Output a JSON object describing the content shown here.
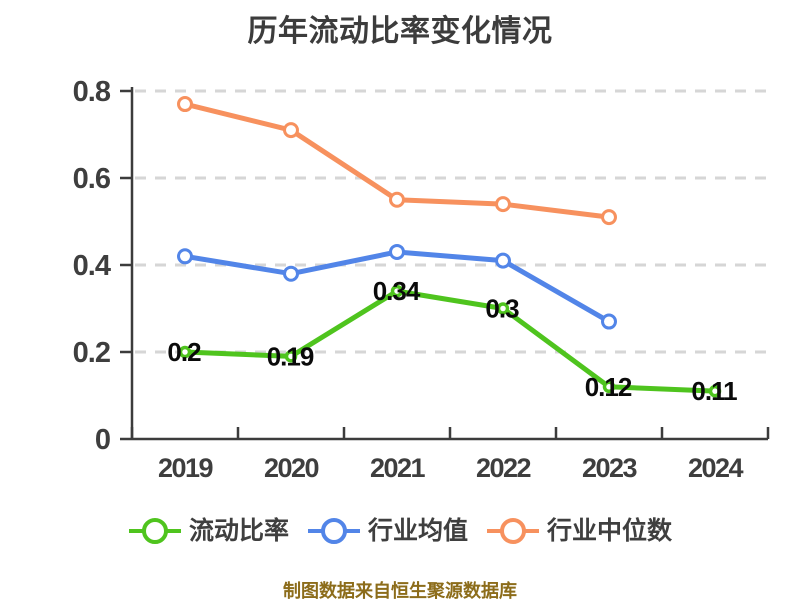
{
  "title": "历年流动比率变化情况",
  "footer_note": "制图数据来自恒生聚源数据库",
  "colors": {
    "title": "#3c3c3c",
    "axis": "#3c3c3c",
    "grid": "#d6d6d6",
    "tick_label": "#3e3e3e",
    "point_label": "#0a0a0a",
    "legend_label": "#3f3f3f",
    "marker_fill": "#ffffff",
    "footer": "#8c6c1a",
    "series_green": "#4fc41e",
    "series_blue": "#5285e8",
    "series_orange": "#f7915e"
  },
  "chart_data": {
    "type": "line",
    "title": "历年流动比率变化情况",
    "categories": [
      "2019",
      "2020",
      "2021",
      "2022",
      "2023",
      "2024"
    ],
    "series": [
      {
        "key": "current-ratio",
        "name": "流动比率",
        "color": "#4fc41e",
        "values": [
          0.2,
          0.19,
          0.34,
          0.3,
          0.12,
          0.11
        ],
        "show_point_labels": true
      },
      {
        "key": "industry-average",
        "name": "行业均值",
        "color": "#5285e8",
        "values": [
          0.42,
          0.38,
          0.43,
          0.41,
          0.27,
          null
        ],
        "show_point_labels": false
      },
      {
        "key": "industry-median",
        "name": "行业中位数",
        "color": "#f7915e",
        "values": [
          0.77,
          0.71,
          0.55,
          0.54,
          0.51,
          null
        ],
        "show_point_labels": false
      }
    ],
    "xlabel": "",
    "ylabel": "",
    "ylim": [
      0,
      0.8
    ],
    "yticks": [
      0,
      0.2,
      0.4,
      0.6,
      0.8
    ],
    "grid": "horizontal-dashed",
    "legend_position": "bottom"
  }
}
